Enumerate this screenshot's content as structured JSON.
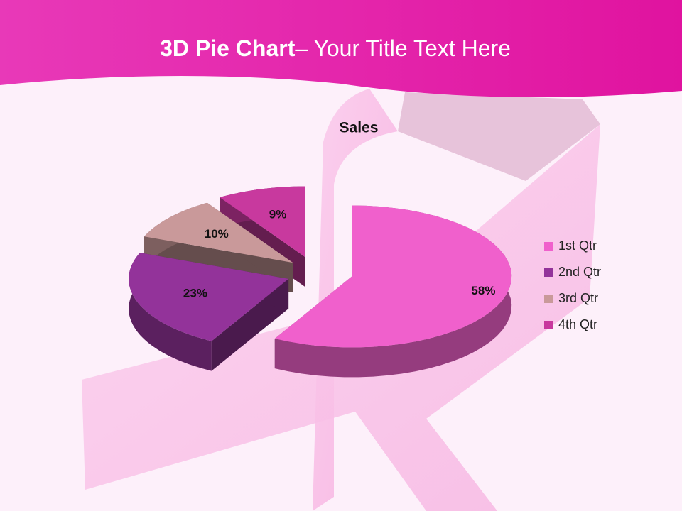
{
  "slide_title": {
    "bold": "3D Pie Chart",
    "rest": "– Your Title Text Here"
  },
  "chart_data": {
    "type": "pie",
    "title": "Sales",
    "categories": [
      "1st Qtr",
      "2nd Qtr",
      "3rd Qtr",
      "4th Qtr"
    ],
    "values": [
      58,
      23,
      10,
      9
    ],
    "value_labels": [
      "58%",
      "23%",
      "10%",
      "9%"
    ],
    "colors": [
      "#f060cc",
      "#93339a",
      "#c9999a",
      "#c8399e"
    ],
    "legend": "right"
  }
}
